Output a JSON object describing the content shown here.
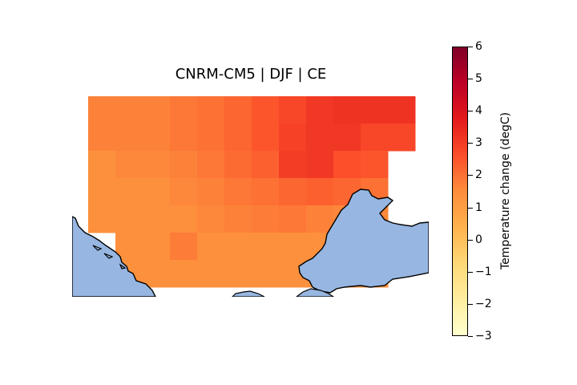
{
  "title": "CNRM-CM5 | DJF | CE",
  "colorbar": {
    "label": "Temperature change (degC)",
    "min": -3,
    "max": 6,
    "ticks": [
      "6",
      "5",
      "4",
      "3",
      "2",
      "1",
      "0",
      "−1",
      "−2",
      "−3"
    ],
    "colormap": "YlOrRd",
    "colors": [
      "#ffffcc",
      "#ffeda0",
      "#fed976",
      "#feb24c",
      "#fd8d3c",
      "#fc4e2a",
      "#e31a1c",
      "#bd0026",
      "#800026"
    ]
  },
  "map": {
    "ocean_color": "#97b6e1",
    "coastline_color": "#000000",
    "grid_values": [
      [
        1.7,
        1.7,
        1.7,
        1.9,
        2.0,
        2.2,
        2.5,
        2.8,
        3.1,
        3.2,
        3.2,
        3.2
      ],
      [
        1.7,
        1.7,
        1.7,
        1.9,
        2.0,
        2.2,
        2.5,
        2.9,
        3.1,
        3.1,
        2.8,
        2.8
      ],
      [
        1.4,
        1.6,
        1.6,
        1.7,
        1.9,
        2.1,
        2.3,
        3.0,
        3.1,
        2.6,
        2.5,
        null
      ],
      [
        1.4,
        1.4,
        1.4,
        1.6,
        1.7,
        1.9,
        2.0,
        2.2,
        2.3,
        2.2,
        2.0,
        null
      ],
      [
        1.4,
        1.4,
        1.4,
        1.4,
        1.6,
        1.7,
        1.8,
        1.9,
        1.7,
        1.6,
        1.6,
        null
      ],
      [
        null,
        1.4,
        1.4,
        1.8,
        1.4,
        1.4,
        1.4,
        1.4,
        1.4,
        1.4,
        1.4,
        null
      ],
      [
        null,
        1.4,
        1.4,
        1.4,
        1.4,
        1.4,
        1.4,
        1.4,
        1.4,
        1.4,
        1.4,
        null
      ]
    ]
  }
}
